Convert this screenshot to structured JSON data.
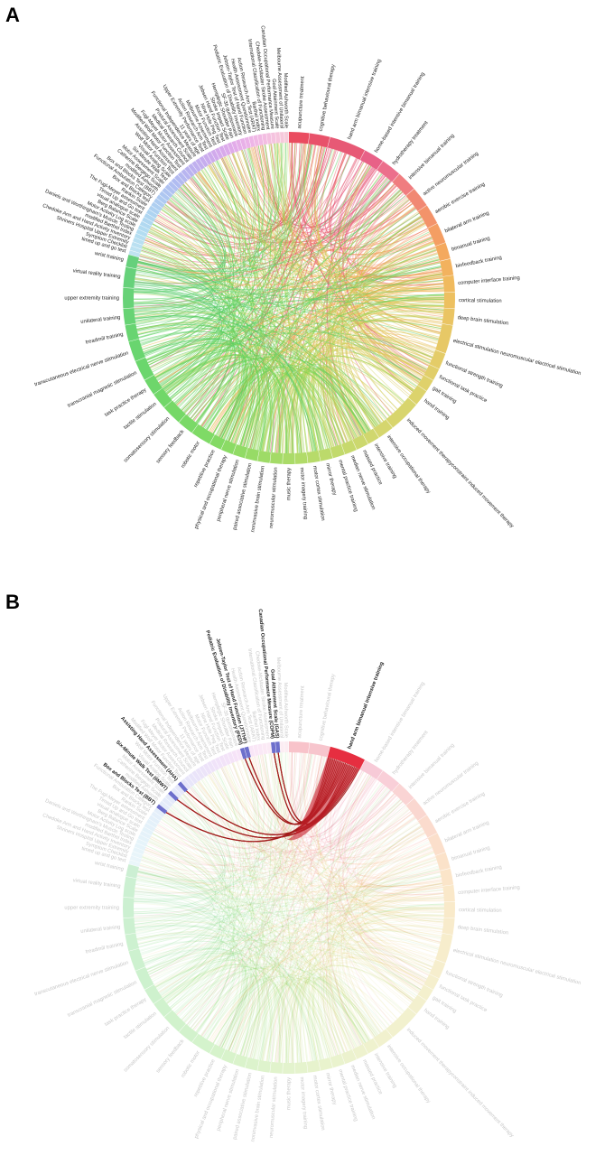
{
  "panels": [
    {
      "letter": "A",
      "highlight": null,
      "segments": [
        {
          "label": "acupuncture treatment",
          "group": "intervention",
          "color": "#e8384f",
          "weight": 5
        },
        {
          "label": "cognitive behavioural therapy",
          "group": "intervention",
          "color": "#e63f5a",
          "weight": 5
        },
        {
          "label": "hand arm bimanual intensive training",
          "group": "intervention",
          "color": "#e44766",
          "weight": 9
        },
        {
          "label": "home-based intensive bimanual training",
          "group": "intervention",
          "color": "#e6507a",
          "weight": 5
        },
        {
          "label": "hydrotherapy treatment",
          "group": "intervention",
          "color": "#ea5f7f",
          "weight": 5
        },
        {
          "label": "intensive bimanual training",
          "group": "intervention",
          "color": "#ee6f72",
          "weight": 5
        },
        {
          "label": "active neuromuscular training",
          "group": "intervention",
          "color": "#f07b64",
          "weight": 5
        },
        {
          "label": "aerobic exercise training",
          "group": "intervention",
          "color": "#f2875a",
          "weight": 5
        },
        {
          "label": "bilateral arm training",
          "group": "intervention",
          "color": "#f39452",
          "weight": 5
        },
        {
          "label": "bimanual training",
          "group": "intervention",
          "color": "#f3a04d",
          "weight": 4
        },
        {
          "label": "biofeedback training",
          "group": "intervention",
          "color": "#f1aa4c",
          "weight": 4
        },
        {
          "label": "computer interface training",
          "group": "intervention",
          "color": "#eeb34d",
          "weight": 4
        },
        {
          "label": "cortical stimulation",
          "group": "intervention",
          "color": "#ebb94f",
          "weight": 4
        },
        {
          "label": "deep brain stimulation",
          "group": "intervention",
          "color": "#e8be52",
          "weight": 4
        },
        {
          "label": "electrical stimulation neuromuscular electrical stimulation",
          "group": "intervention",
          "color": "#e4c255",
          "weight": 7
        },
        {
          "label": "functional strength training",
          "group": "intervention",
          "color": "#e1c658",
          "weight": 4
        },
        {
          "label": "functional task practice",
          "group": "intervention",
          "color": "#dec95a",
          "weight": 3
        },
        {
          "label": "gait training",
          "group": "intervention",
          "color": "#dbcc5b",
          "weight": 3
        },
        {
          "label": "hand training",
          "group": "intervention",
          "color": "#d8ce5c",
          "weight": 4
        },
        {
          "label": "induced movement therapyconstraint induced movement therapy",
          "group": "intervention",
          "color": "#d4d05d",
          "weight": 8
        },
        {
          "label": "intensive occupational therapy",
          "group": "intervention",
          "color": "#d0d25e",
          "weight": 4
        },
        {
          "label": "intensive training",
          "group": "intervention",
          "color": "#cbd35e",
          "weight": 3
        },
        {
          "label": "massed practice",
          "group": "intervention",
          "color": "#c6d45e",
          "weight": 3
        },
        {
          "label": "median nerve stimulation",
          "group": "intervention",
          "color": "#c1d55d",
          "weight": 3
        },
        {
          "label": "mental practice training",
          "group": "intervention",
          "color": "#bbd65c",
          "weight": 3
        },
        {
          "label": "mirror therapy",
          "group": "intervention",
          "color": "#b5d65b",
          "weight": 3
        },
        {
          "label": "motor cortex stimulation",
          "group": "intervention",
          "color": "#afd75a",
          "weight": 3
        },
        {
          "label": "motor imagery training",
          "group": "intervention",
          "color": "#a8d759",
          "weight": 3
        },
        {
          "label": "music therapy",
          "group": "intervention",
          "color": "#a1d758",
          "weight": 3
        },
        {
          "label": "neuromuscular stimulation",
          "group": "intervention",
          "color": "#9ad757",
          "weight": 3
        },
        {
          "label": "noninvasive brain stimulation",
          "group": "intervention",
          "color": "#93d756",
          "weight": 3
        },
        {
          "label": "paired associative stimulation",
          "group": "intervention",
          "color": "#8cd755",
          "weight": 3
        },
        {
          "label": "peripheral nerve stimulation",
          "group": "intervention",
          "color": "#85d754",
          "weight": 3
        },
        {
          "label": "physical and occupational therapy",
          "group": "intervention",
          "color": "#7ed754",
          "weight": 3
        },
        {
          "label": "repetitive practice",
          "group": "intervention",
          "color": "#77d654",
          "weight": 3
        },
        {
          "label": "robotic motor",
          "group": "intervention",
          "color": "#71d655",
          "weight": 5
        },
        {
          "label": "sensory feedback",
          "group": "intervention",
          "color": "#6bd556",
          "weight": 4
        },
        {
          "label": "somatosensory stimulation",
          "group": "intervention",
          "color": "#66d457",
          "weight": 5
        },
        {
          "label": "tactile stimulation",
          "group": "intervention",
          "color": "#62d359",
          "weight": 4
        },
        {
          "label": "task practice therapy",
          "group": "intervention",
          "color": "#5ed25b",
          "weight": 4
        },
        {
          "label": "transcranial magnetic stimulation",
          "group": "intervention",
          "color": "#5bd15d",
          "weight": 5
        },
        {
          "label": "transcutaneous electrical nerve stimulation",
          "group": "intervention",
          "color": "#59d05f",
          "weight": 5
        },
        {
          "label": "treadmill training",
          "group": "intervention",
          "color": "#58cf62",
          "weight": 4
        },
        {
          "label": "unilateral training",
          "group": "intervention",
          "color": "#57ce65",
          "weight": 4
        },
        {
          "label": "upper extremity training",
          "group": "intervention",
          "color": "#56cd68",
          "weight": 5
        },
        {
          "label": "virtual reality training",
          "group": "intervention",
          "color": "#55cc6b",
          "weight": 5
        },
        {
          "label": "wrist training",
          "group": "intervention",
          "color": "#55cb6e",
          "weight": 3
        },
        {
          "label": "timed up and go test",
          "group": "outcome",
          "color": "#b9e0f0",
          "weight": 1
        },
        {
          "label": "Symptom Checklist",
          "group": "outcome",
          "color": "#b6dff0",
          "weight": 1
        },
        {
          "label": "Shriners Hospital Upper Extremity",
          "group": "outcome",
          "color": "#b3ddf0",
          "weight": 1
        },
        {
          "label": "Chedoke Arm and Hand Activity Inventory",
          "group": "outcome",
          "color": "#b0dcf0",
          "weight": 1
        },
        {
          "label": "modified Barthel Index",
          "group": "outcome",
          "color": "#adda f0",
          "weight": 1
        },
        {
          "label": "Daniels and Worthingham's Muscle Testing",
          "group": "outcome",
          "color": "#abd9f0",
          "weight": 1
        },
        {
          "label": "Motor Activity Log scale",
          "group": "outcome",
          "color": "#a9d7f0",
          "weight": 1
        },
        {
          "label": "Berg Balance Scale",
          "group": "outcome",
          "color": "#a8d5f0",
          "weight": 1
        },
        {
          "label": "visual analogue scale",
          "group": "outcome",
          "color": "#a7d3f0",
          "weight": 1
        },
        {
          "label": "Timed Up and Go test",
          "group": "outcome",
          "color": "#a6d1f0",
          "weight": 1
        },
        {
          "label": "The Fugl-Meyer assessment",
          "group": "outcome",
          "color": "#a5cff0",
          "weight": 1
        },
        {
          "label": "Rankin Scale",
          "group": "outcome",
          "color": "#a5ccf0",
          "weight": 1
        },
        {
          "label": "Box and Blocks test",
          "group": "outcome",
          "color": "#a5caf0",
          "weight": 1
        },
        {
          "label": "Functional Ambulation Category",
          "group": "outcome",
          "color": "#a5c7f0",
          "weight": 1
        },
        {
          "label": "Box and Blocks Test (BBT)",
          "group": "outcome",
          "color": "#a5c4f0",
          "weight": 1
        },
        {
          "label": "modified Ashworth",
          "group": "outcome",
          "color": "#a5c1ef",
          "weight": 1
        },
        {
          "label": "Catherine Bergego Scale",
          "group": "outcome",
          "color": "#a6beef",
          "weight": 1
        },
        {
          "label": "Motor Assessment Scale",
          "group": "outcome",
          "color": "#a7bbef",
          "weight": 1
        },
        {
          "label": "Six-Minute Walk Test",
          "group": "outcome",
          "color": "#a8b8ef",
          "weight": 1
        },
        {
          "label": "Visual Analog Scale",
          "group": "outcome",
          "color": "#a9b5ef",
          "weight": 1
        },
        {
          "label": "Wolf Motor Function Test",
          "group": "outcome",
          "color": "#abb2ee",
          "weight": 1
        },
        {
          "label": "Assisting Hand Assessment",
          "group": "outcome",
          "color": "#adb0ee",
          "weight": 1
        },
        {
          "label": "Modified Wolf Motor Function Test",
          "group": "outcome",
          "color": "#b0adee",
          "weight": 1
        },
        {
          "label": "Fugl-Meyer Motor Assessment",
          "group": "outcome",
          "color": "#b3abed",
          "weight": 1
        },
        {
          "label": "Medical Research Council",
          "group": "outcome",
          "color": "#b6a9ed",
          "weight": 1
        },
        {
          "label": "Postural Assessment Scale",
          "group": "outcome",
          "color": "#b9a7ed",
          "weight": 1
        },
        {
          "label": "Functional Independence Measure",
          "group": "outcome",
          "color": "#bda5ec",
          "weight": 1
        },
        {
          "label": "11 years of age",
          "group": "outcome",
          "color": "#c0a4ec",
          "weight": 1
        },
        {
          "label": "Upper Extremity Performance Test",
          "group": "outcome",
          "color": "#c4a3eb",
          "weight": 1
        },
        {
          "label": "Action Research Arm Test",
          "group": "outcome",
          "color": "#c8a2eb",
          "weight": 1
        },
        {
          "label": "Melbourne Assessment",
          "group": "outcome",
          "color": "#cca1ea",
          "weight": 1
        },
        {
          "label": "Motor Function Test",
          "group": "outcome",
          "color": "#d0a1ea",
          "weight": 1
        },
        {
          "label": "Nine Hole Peg Test",
          "group": "outcome",
          "color": "#d4a1e9",
          "weight": 1
        },
        {
          "label": "Jebsen Hand Function Test",
          "group": "outcome",
          "color": "#d8a1e9",
          "weight": 1
        },
        {
          "label": "Stroke Impact Scale",
          "group": "outcome",
          "color": "#dca2e8",
          "weight": 1
        },
        {
          "label": "Hemiplegic Shoulder Pain",
          "group": "outcome",
          "color": "#e0a3e8",
          "weight": 1
        },
        {
          "label": "SF-36 questionnaire",
          "group": "outcome",
          "color": "#e3a5e7",
          "weight": 1
        },
        {
          "label": "Pediatric Evaluation of Disability Inventory",
          "group": "outcome",
          "color": "#e6a7e6",
          "weight": 1
        },
        {
          "label": "Jebsen-Taylor Test of Hand Function",
          "group": "outcome",
          "color": "#e9aae5",
          "weight": 1
        },
        {
          "label": "Health Assessment Questionnaire",
          "group": "outcome",
          "color": "#ecade4",
          "weight": 1
        },
        {
          "label": "Action Research Arm Test (ARAT)",
          "group": "outcome",
          "color": "#eeb0e2",
          "weight": 1
        },
        {
          "label": "Barthel Index",
          "group": "outcome",
          "color": "#f0b3e1",
          "weight": 1
        },
        {
          "label": "International Classification of Functioning",
          "group": "outcome",
          "color": "#f2b6df",
          "weight": 1
        },
        {
          "label": "Chedoke-McMaster Stroke Assessment",
          "group": "outcome",
          "color": "#f3b9dd",
          "weight": 1
        },
        {
          "label": "Canadian Occupational Performance Measure",
          "group": "outcome",
          "color": "#f4bcdb",
          "weight": 1
        },
        {
          "label": "Goal Attainment Scale",
          "group": "outcome",
          "color": "#f5bfd9",
          "weight": 1
        },
        {
          "label": "Melbourne Assessment of Unilateral",
          "group": "outcome",
          "color": "#f5c2d7",
          "weight": 1
        },
        {
          "label": "Modified Ashworth Scale",
          "group": "outcome",
          "color": "#f5c5d5",
          "weight": 1
        }
      ]
    },
    {
      "letter": "B",
      "highlight": {
        "source": "hand arm bimanual intensive training",
        "targets": [
          "Canadian Occupational Performance Measure (COPM)",
          "Pediatric Evaluation of Disability Inventory (PEDI)",
          "Jebsen-Taylor Test of Hand Function (JTTHF)",
          "Box and Blocks Test (BBT)",
          "Goal Attainment Scale (GAS)",
          "Assisting Hand Assessment (AHA)",
          "Six-Minute Walk Test (6MWT)"
        ]
      }
    }
  ]
}
